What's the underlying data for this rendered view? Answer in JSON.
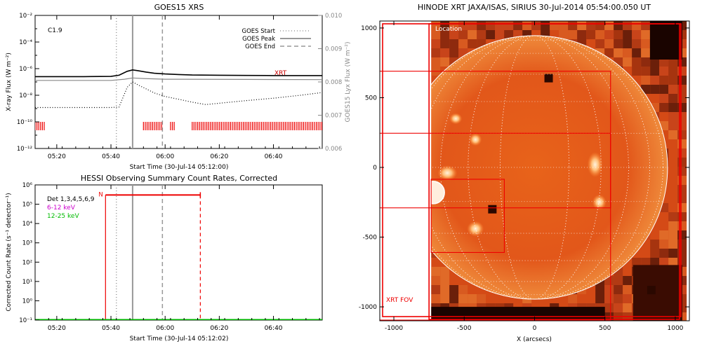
{
  "chart_data": [
    {
      "type": "line",
      "title": "GOES15 XRS",
      "xlabel": "Start Time (30-Jul-14 05:12:00)",
      "ylabel": "X-ray Flux (W m⁻²)",
      "y2label": "GOES15 Lyx Flux (W m⁻²)",
      "xlim": [
        "05:12",
        "06:58"
      ],
      "xticks": [
        "05:20",
        "05:40",
        "06:00",
        "06:20",
        "06:40"
      ],
      "ylim": [
        1e-12,
        0.01
      ],
      "yscale": "log",
      "yticks": [
        "10⁻¹²",
        "10⁻¹⁰",
        "10⁻⁸",
        "10⁻⁶",
        "10⁻⁴",
        "10⁻²"
      ],
      "y2lim": [
        0.006,
        0.01
      ],
      "y2ticks": [
        "0.006",
        "0.007",
        "0.008",
        "0.009",
        "0.010"
      ],
      "annotations": {
        "flare_class": "C1.9",
        "xrt_label": "XRT"
      },
      "legend": {
        "location": "top-right",
        "entries": [
          "GOES Start",
          "GOES Peak",
          "GOES End"
        ]
      },
      "event_lines": [
        {
          "name": "GOES Start",
          "time": "05:42",
          "style": "dotted"
        },
        {
          "name": "GOES Peak",
          "time": "05:48",
          "style": "solid"
        },
        {
          "name": "GOES End",
          "time": "05:59",
          "style": "dashed"
        }
      ],
      "series": [
        {
          "color": "#000000",
          "x": [
            "05:12",
            "05:20",
            "05:30",
            "05:40",
            "05:43",
            "05:46",
            "05:48",
            "05:50",
            "05:53",
            "05:56",
            "06:00",
            "06:05",
            "06:10",
            "06:20",
            "06:30",
            "06:40",
            "06:50",
            "06:58"
          ],
          "values": [
            2.5e-07,
            2.5e-07,
            2.5e-07,
            2.6e-07,
            3.2e-07,
            6.3e-07,
            8e-07,
            7e-07,
            5.5e-07,
            4.5e-07,
            4e-07,
            3.6e-07,
            3.3e-07,
            3.2e-07,
            3.1e-07,
            3e-07,
            3e-07,
            3e-07
          ]
        },
        {
          "color": "#888888",
          "x": [
            "05:12",
            "05:40",
            "05:45",
            "05:48",
            "05:52",
            "06:00",
            "06:30",
            "06:58"
          ],
          "values": [
            1.3e-07,
            1.3e-07,
            1.6e-07,
            2e-07,
            1.8e-07,
            1.6e-07,
            1.55e-07,
            1.5e-07
          ]
        },
        {
          "color": "#000000",
          "style": "dotted",
          "x": [
            "05:12",
            "05:20",
            "05:30",
            "05:40",
            "05:43",
            "05:46",
            "05:48",
            "05:50",
            "05:53",
            "05:56",
            "06:00",
            "06:05",
            "06:10",
            "06:15",
            "06:20",
            "06:30",
            "06:40",
            "06:50",
            "06:58"
          ],
          "values": [
            1.2e-09,
            1.2e-09,
            1.2e-09,
            1.2e-09,
            1.3e-09,
            4e-08,
            1e-07,
            6e-08,
            3e-08,
            1.5e-08,
            8e-09,
            5e-09,
            3e-09,
            2e-09,
            2.5e-09,
            4e-09,
            6e-09,
            1e-08,
            1.6e-08
          ]
        }
      ],
      "xrt_observation_intervals": [
        [
          "05:12",
          "05:16"
        ],
        [
          "05:52",
          "05:59"
        ],
        [
          "06:02",
          "06:04"
        ],
        [
          "06:10",
          "06:58"
        ]
      ]
    },
    {
      "type": "line",
      "title": "HESSI Observing Summary Count Rates, Corrected",
      "xlabel": "Start Time (30-Jul-14 05:12:02)",
      "ylabel": "Corrected Count Rate (s⁻¹ detector⁻¹)",
      "xlim": [
        "05:12",
        "06:58"
      ],
      "xticks": [
        "05:20",
        "05:40",
        "06:00",
        "06:20",
        "06:40"
      ],
      "ylim": [
        0.1,
        1000000.0
      ],
      "yscale": "log",
      "yticks": [
        "10⁻¹",
        "10⁰",
        "10¹",
        "10²",
        "10³",
        "10⁴",
        "10⁵",
        "10⁶"
      ],
      "legend": {
        "location": "top-left",
        "entries": [
          {
            "label": "Det 1,3,4,5,6,9",
            "color": "#000000"
          },
          {
            "label": "6-12 keV",
            "color": "#cc00cc"
          },
          {
            "label": "12-25 keV",
            "color": "#00bb00"
          }
        ]
      },
      "night_marker": {
        "label": "N",
        "start": "05:38",
        "end": "06:13"
      },
      "event_lines": [
        {
          "name": "GOES Start",
          "time": "05:42",
          "style": "dotted"
        },
        {
          "name": "GOES Peak",
          "time": "05:48",
          "style": "solid"
        },
        {
          "name": "GOES End",
          "time": "05:59",
          "style": "dashed"
        }
      ],
      "red_lines": [
        {
          "time": "05:38",
          "style": "solid"
        },
        {
          "time": "06:13",
          "style": "dashed"
        }
      ],
      "series": [
        {
          "name": "12-25 keV",
          "color": "#00bb00",
          "x": [
            "05:12",
            "06:58"
          ],
          "values": [
            0.1,
            0.1
          ]
        }
      ]
    },
    {
      "type": "heatmap",
      "title": "HINODE XRT JAXA/ISAS, SIRIUS 30-Jul-2014 05:54:00.050 UT",
      "xlabel": "X (arcsecs)",
      "ylabel": "",
      "xlim": [
        -1100,
        1100
      ],
      "ylim": [
        -1100,
        1050
      ],
      "xticks": [
        -1000,
        -500,
        0,
        500,
        1000
      ],
      "yticks": [
        -1000,
        -500,
        0,
        500,
        1000
      ],
      "solar_radius_arcsec": 945,
      "annotations": {
        "fov_label": "XRT FOV",
        "location_label": "Location"
      },
      "fov_rectangles": [
        {
          "x": [
            -1080,
            1040
          ],
          "y": [
            -1070,
            1030
          ]
        },
        {
          "x": [
            -750,
            1030
          ],
          "y": [
            -1090,
            1030
          ]
        },
        {
          "x": [
            -1110,
            540
          ],
          "y": [
            -1095,
            690
          ]
        },
        {
          "x": [
            -1100,
            540
          ],
          "y": [
            -290,
            245
          ]
        },
        {
          "x": [
            -735,
            -215
          ],
          "y": [
            -610,
            -85
          ]
        }
      ]
    }
  ]
}
